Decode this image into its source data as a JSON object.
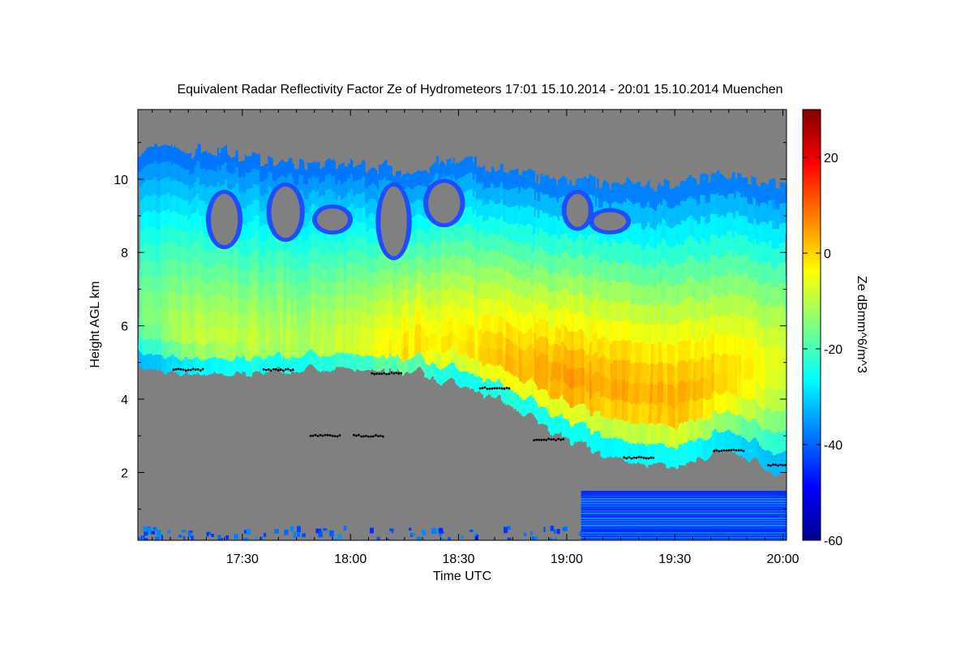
{
  "chart_data": {
    "type": "heatmap",
    "title": "Equivalent Radar Reflectivity Factor Ze of Hydrometeors    17:01 15.10.2014 - 20:01 15.10.2014 Muenchen",
    "xlabel": "Time UTC",
    "ylabel": "Height AGL km",
    "colorbar_label": "Ze dBmm^6/m^3",
    "x_range": [
      "17:01",
      "20:01"
    ],
    "x_ticks": [
      "17:30",
      "18:00",
      "18:30",
      "19:00",
      "19:30",
      "20:00"
    ],
    "y_range": [
      0.15,
      11.9
    ],
    "y_ticks": [
      2,
      4,
      6,
      8,
      10
    ],
    "colorbar_range": [
      -60,
      30
    ],
    "colorbar_ticks": [
      20,
      0,
      -20,
      -40,
      -60
    ],
    "colormap": "jet",
    "no_signal_color": "#808080",
    "cloud_base_points_color": "#000000",
    "cloud_layer": {
      "times": [
        "17:01",
        "17:15",
        "17:30",
        "17:45",
        "18:00",
        "18:15",
        "18:30",
        "18:45",
        "19:00",
        "19:15",
        "19:30",
        "19:45",
        "20:00"
      ],
      "top_km": [
        10.8,
        10.8,
        10.6,
        10.4,
        10.4,
        10.2,
        10.5,
        10.1,
        9.9,
        9.9,
        9.9,
        10.1,
        9.8
      ],
      "base_km": [
        4.9,
        4.7,
        4.7,
        4.8,
        4.8,
        4.8,
        4.4,
        3.8,
        2.9,
        2.3,
        2.2,
        2.6,
        1.9
      ],
      "peak_ze_dbz": [
        -16,
        -10,
        -9,
        -10,
        -8,
        -1,
        -3,
        3,
        5,
        4,
        3,
        0,
        -7
      ],
      "peak_height_km": [
        6.6,
        5.8,
        5.6,
        5.6,
        5.5,
        5.4,
        5.6,
        5.0,
        4.6,
        4.3,
        4.0,
        4.8,
        5.2
      ]
    },
    "cloud_gaps": [
      {
        "time": "17:25",
        "top_km": 9.6,
        "base_km": 8.2
      },
      {
        "time": "17:42",
        "top_km": 9.8,
        "base_km": 8.4
      },
      {
        "time": "17:55",
        "top_km": 9.2,
        "base_km": 8.6
      },
      {
        "time": "18:12",
        "top_km": 9.8,
        "base_km": 7.9
      },
      {
        "time": "18:26",
        "top_km": 9.9,
        "base_km": 8.8
      },
      {
        "time": "19:03",
        "top_km": 9.6,
        "base_km": 8.7
      },
      {
        "time": "19:12",
        "top_km": 9.1,
        "base_km": 8.6
      }
    ],
    "cloud_base_markers_km": [
      {
        "time": "17:15",
        "height": 4.8
      },
      {
        "time": "17:40",
        "height": 4.8
      },
      {
        "time": "18:10",
        "height": 4.7
      },
      {
        "time": "18:40",
        "height": 4.3
      },
      {
        "time": "18:55",
        "height": 2.9
      },
      {
        "time": "17:53",
        "height": 3.0
      },
      {
        "time": "18:05",
        "height": 3.0
      },
      {
        "time": "19:20",
        "height": 2.4
      },
      {
        "time": "19:45",
        "height": 2.6
      },
      {
        "time": "20:00",
        "height": 2.2
      }
    ],
    "low_level_echo": {
      "start_time": "19:04",
      "end_time": "20:01",
      "top_km": 1.5,
      "base_km": 0.15,
      "ze_range_dbz": [
        -45,
        -30
      ]
    }
  }
}
